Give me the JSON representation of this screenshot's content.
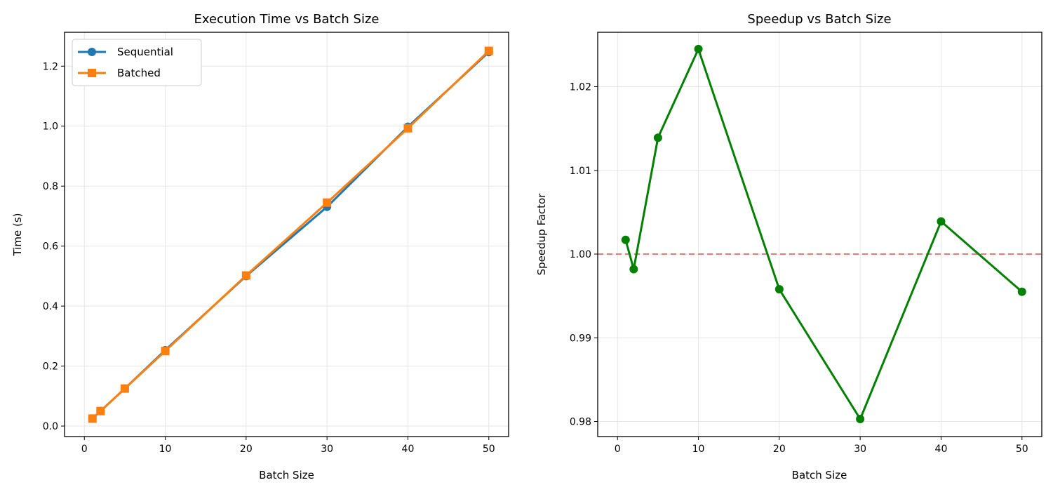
{
  "chart_data": [
    {
      "type": "line",
      "title": "Execution Time vs Batch Size",
      "xlabel": "Batch Size",
      "ylabel": "Time (s)",
      "xlim": [
        -2.45,
        52.45
      ],
      "ylim": [
        -0.035,
        1.313
      ],
      "xticks": [
        0,
        10,
        20,
        30,
        40,
        50
      ],
      "yticks": [
        0.0,
        0.2,
        0.4,
        0.6,
        0.8,
        1.0,
        1.2
      ],
      "ytick_labels": [
        "0.0",
        "0.2",
        "0.4",
        "0.6",
        "0.8",
        "1.0",
        "1.2"
      ],
      "grid": true,
      "legend": "top-left",
      "x": [
        1,
        2,
        5,
        10,
        20,
        30,
        40,
        50
      ],
      "series": [
        {
          "name": "Sequential",
          "values": [
            0.025,
            0.05,
            0.125,
            0.253,
            0.5,
            0.731,
            0.998,
            1.247
          ],
          "color": "#1f77b4",
          "marker": "circle"
        },
        {
          "name": "Batched",
          "values": [
            0.025,
            0.05,
            0.125,
            0.25,
            0.502,
            0.745,
            0.993,
            1.251
          ],
          "color": "#ff7f0e",
          "marker": "square"
        }
      ]
    },
    {
      "type": "line",
      "title": "Speedup vs Batch Size",
      "xlabel": "Batch Size",
      "ylabel": "Speedup Factor",
      "xlim": [
        -2.45,
        52.45
      ],
      "ylim": [
        0.9782,
        1.0265
      ],
      "xticks": [
        0,
        10,
        20,
        30,
        40,
        50
      ],
      "yticks": [
        0.98,
        0.99,
        1.0,
        1.01,
        1.02
      ],
      "ytick_labels": [
        "0.98",
        "0.99",
        "1.00",
        "1.01",
        "1.02"
      ],
      "grid": true,
      "reference_line": {
        "y": 1.0,
        "color": "#ef7777",
        "style": "dashed"
      },
      "x": [
        1,
        2,
        5,
        10,
        20,
        30,
        40,
        50
      ],
      "series": [
        {
          "values": [
            1.0017,
            0.9982,
            1.0139,
            1.0245,
            0.9958,
            0.9803,
            1.0039,
            0.9955
          ],
          "color": "#008000",
          "marker": "circle"
        }
      ]
    }
  ]
}
